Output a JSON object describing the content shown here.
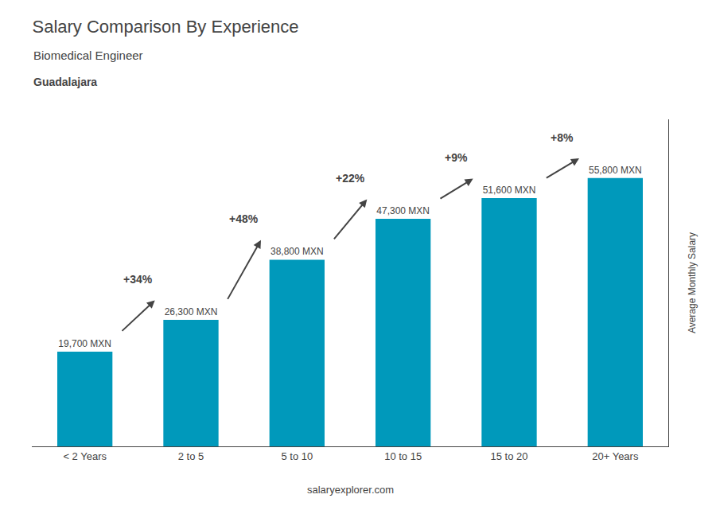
{
  "chart_data": {
    "type": "bar",
    "title": "Salary Comparison By Experience",
    "subtitle": [
      "Biomedical Engineer",
      "Guadalajara"
    ],
    "ylabel": "Average Monthly Salary",
    "categories": [
      "< 2 Years",
      "2 to 5",
      "5 to 10",
      "10 to 15",
      "15 to 20",
      "20+ Years"
    ],
    "values": [
      19700,
      26300,
      38800,
      47300,
      51600,
      55800
    ],
    "value_labels": [
      "19,700 MXN",
      "26,300 MXN",
      "38,800 MXN",
      "47,300 MXN",
      "51,600 MXN",
      "55,800 MXN"
    ],
    "data_labels": true,
    "annotations": [
      "+34%",
      "+48%",
      "+22%",
      "+9%",
      "+8%"
    ],
    "footer": "salaryexplorer.com",
    "color": "#0099bb",
    "ylim": [
      0,
      68000
    ],
    "yticks": [],
    "grid": false,
    "tick_labels": "x"
  }
}
